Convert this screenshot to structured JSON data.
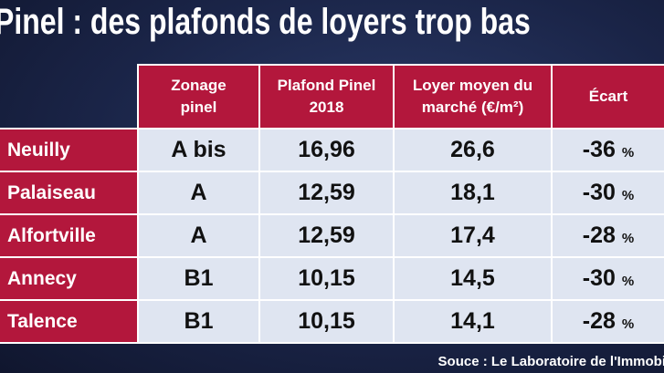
{
  "header": {
    "title": "Pinel : des plafonds de loyers trop bas"
  },
  "table": {
    "columns": [
      "Zonage pinel",
      "Plafond Pinel 2018",
      "Loyer moyen du marché (€/m²)",
      "Écart"
    ],
    "rows": [
      {
        "city": "Neuilly",
        "zone": "A bis",
        "plafond": "16,96",
        "loyer": "26,6",
        "ecart": "-36",
        "unit": "%"
      },
      {
        "city": "Palaiseau",
        "zone": "A",
        "plafond": "12,59",
        "loyer": "18,1",
        "ecart": "-30",
        "unit": "%"
      },
      {
        "city": "Alfortville",
        "zone": "A",
        "plafond": "12,59",
        "loyer": "17,4",
        "ecart": "-28",
        "unit": "%"
      },
      {
        "city": "Annecy",
        "zone": "B1",
        "plafond": "10,15",
        "loyer": "14,5",
        "ecart": "-30",
        "unit": "%"
      },
      {
        "city": "Talence",
        "zone": "B1",
        "plafond": "10,15",
        "loyer": "14,1",
        "ecart": "-28",
        "unit": "%"
      }
    ]
  },
  "footer": {
    "source": "Souce : Le Laboratoire de l'Immobi"
  }
}
